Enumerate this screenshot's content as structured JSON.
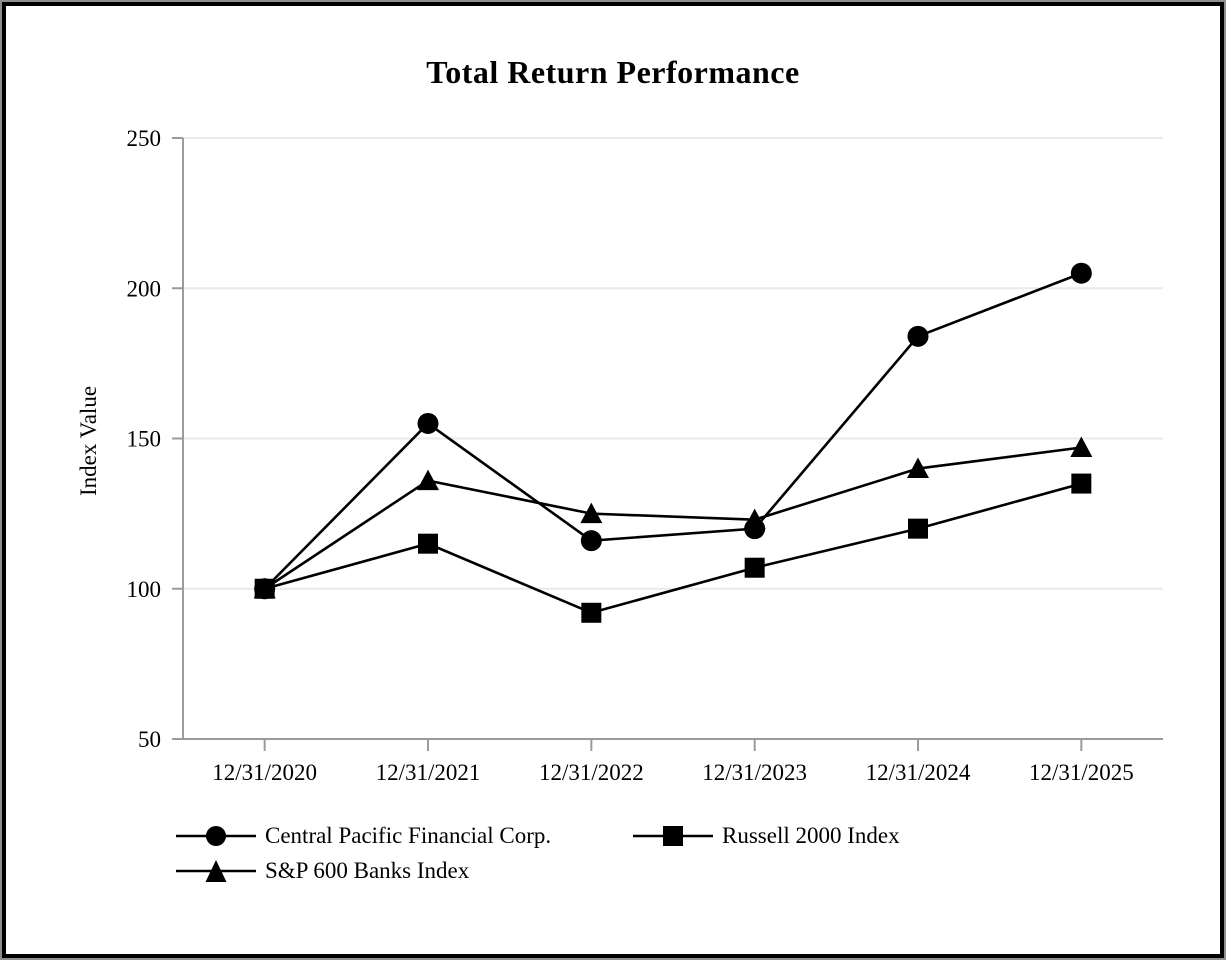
{
  "chart_data": {
    "type": "line",
    "title": "Total Return Performance",
    "xlabel": "",
    "ylabel": "Index Value",
    "categories": [
      "12/31/2020",
      "12/31/2021",
      "12/31/2022",
      "12/31/2023",
      "12/31/2024",
      "12/31/2025"
    ],
    "series": [
      {
        "name": "Central Pacific Financial Corp.",
        "marker": "circle",
        "values": [
          100,
          155,
          116,
          120,
          184,
          205
        ]
      },
      {
        "name": "Russell 2000 Index",
        "marker": "square",
        "values": [
          100,
          115,
          92,
          107,
          120,
          135
        ]
      },
      {
        "name": "S&P 600 Banks Index",
        "marker": "triangle",
        "values": [
          100,
          136,
          125,
          123,
          140,
          147
        ]
      }
    ],
    "ylim": [
      50,
      250
    ],
    "yticks": [
      50,
      100,
      150,
      200,
      250
    ],
    "grid": true,
    "legend_position": "bottom-left",
    "colors": {
      "series": "#000000",
      "axis": "#9b9b9b",
      "gridline": "#eaeaea",
      "text": "#000000",
      "background": "#ffffff",
      "border": "#000000"
    }
  }
}
